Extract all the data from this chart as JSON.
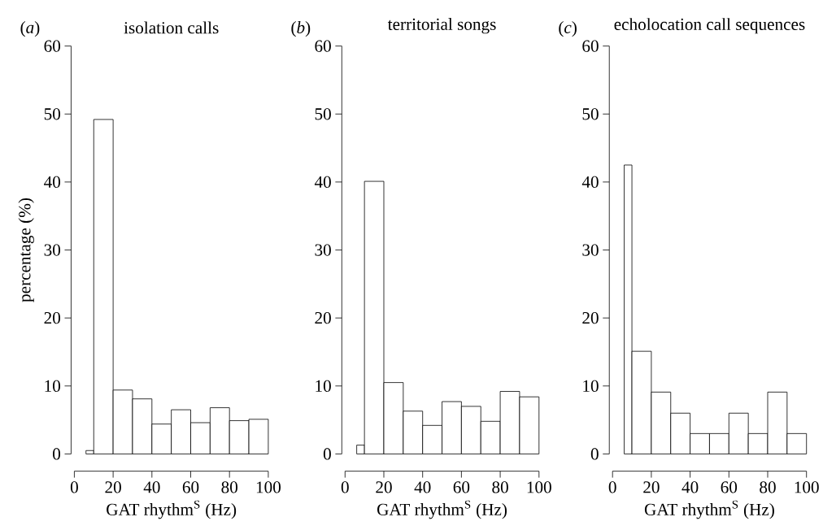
{
  "chart_data": [
    {
      "type": "histogram",
      "title": "isolation calls",
      "annotations": [
        "(*a*)"
      ],
      "xlabel": "GAT rhythm$^{S}$ (Hz)",
      "ylabel": "percentage (%)",
      "bins": [
        6,
        10,
        20,
        30,
        40,
        50,
        60,
        70,
        80,
        90,
        100
      ],
      "values": [
        0.5,
        49.2,
        9.4,
        8.1,
        4.4,
        6.5,
        4.6,
        6.8,
        4.9,
        5.1
      ],
      "color": "#ffffff",
      "xlim": [
        0,
        100
      ],
      "ylim": [
        0,
        60
      ],
      "xticks": [
        0,
        20,
        40,
        60,
        80,
        100
      ],
      "yticks": [
        0,
        10,
        20,
        30,
        40,
        50,
        60
      ]
    },
    {
      "type": "histogram",
      "title": "territorial songs",
      "annotations": [
        "(*b*)"
      ],
      "xlabel": "GAT rhythm$^{S}$ (Hz)",
      "bins": [
        6,
        10,
        20,
        30,
        40,
        50,
        60,
        70,
        80,
        90,
        100
      ],
      "values": [
        1.3,
        40.1,
        10.5,
        6.3,
        4.2,
        7.7,
        7.0,
        4.8,
        9.2,
        8.4
      ],
      "color": "#ffffff",
      "xlim": [
        0,
        100
      ],
      "ylim": [
        0,
        60
      ],
      "xticks": [
        0,
        20,
        40,
        60,
        80,
        100
      ],
      "yticks": [
        0,
        10,
        20,
        30,
        40,
        50,
        60
      ]
    },
    {
      "type": "histogram",
      "title": "echolocation call sequences",
      "annotations": [
        "(*c*)"
      ],
      "xlabel": "GAT rhythm$^{S}$ (Hz)",
      "bins": [
        6,
        10,
        20,
        30,
        40,
        50,
        60,
        70,
        80,
        90,
        100
      ],
      "values": [
        42.5,
        15.1,
        9.1,
        6.0,
        3.0,
        3.0,
        6.0,
        3.0,
        9.1,
        3.0
      ],
      "color": "#ffffff",
      "xlim": [
        0,
        100
      ],
      "ylim": [
        0,
        60
      ],
      "xticks": [
        0,
        20,
        40,
        60,
        80,
        100
      ],
      "yticks": [
        0,
        10,
        20,
        30,
        40,
        50,
        60
      ]
    }
  ]
}
